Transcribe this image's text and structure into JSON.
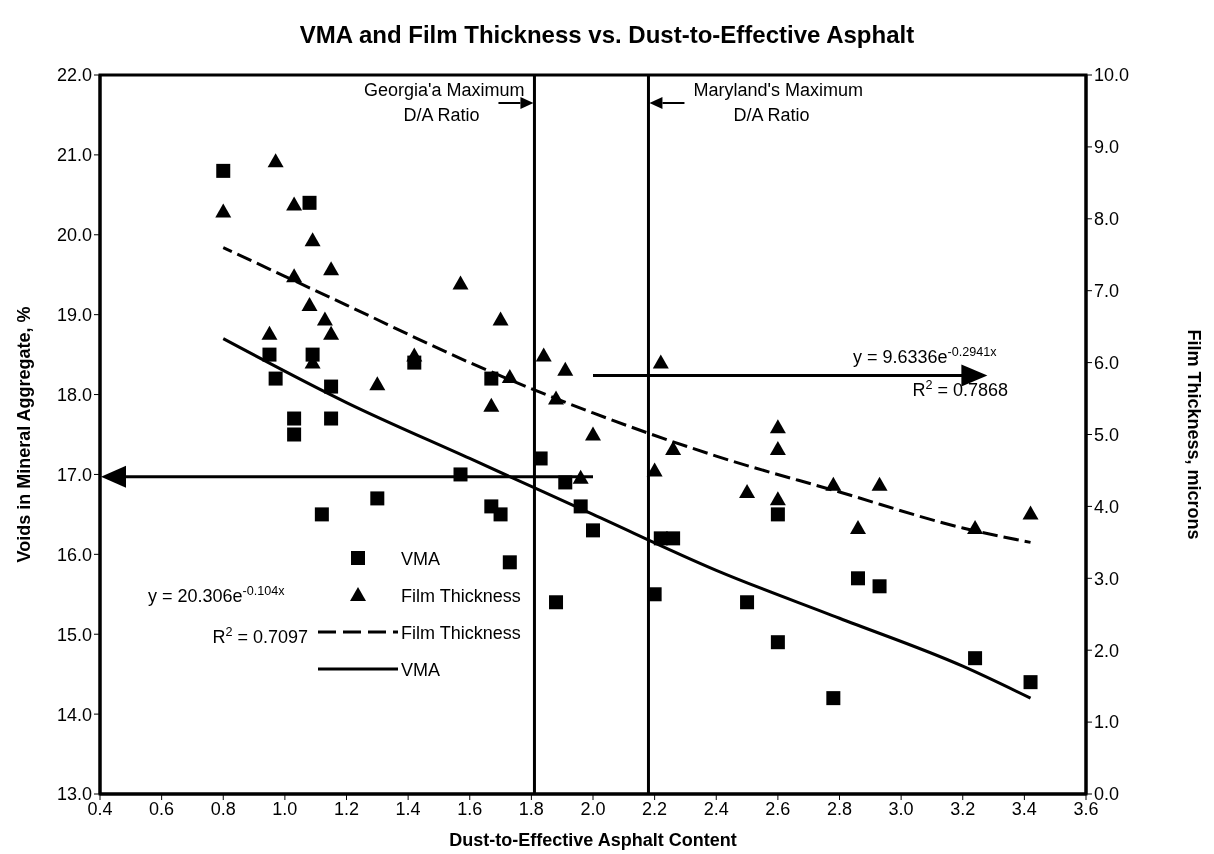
{
  "chart_data": {
    "type": "scatter",
    "title": "VMA and Film Thickness vs. Dust-to-Effective Asphalt",
    "xlabel": "Dust-to-Effective Asphalt Content",
    "ylabel": "Voids in Mineral Aggregate, %",
    "y2label": "Film Thickness, microns",
    "xlim": [
      0.4,
      3.6
    ],
    "xticks": [
      0.4,
      0.6,
      0.8,
      {
        "value": 1,
        "label": "1.0"
      },
      1.2,
      1.4,
      1.6,
      1.8,
      {
        "value": 2,
        "label": "2.0"
      },
      2.2,
      2.4,
      2.6,
      2.8,
      {
        "value": 3,
        "label": "3.0"
      },
      3.2,
      3.4,
      3.6
    ],
    "ylim": [
      13,
      22
    ],
    "yticks": [
      {
        "value": 13,
        "label": "13.0"
      },
      {
        "value": 14,
        "label": "14.0"
      },
      {
        "value": 15,
        "label": "15.0"
      },
      {
        "value": 16,
        "label": "16.0"
      },
      {
        "value": 17,
        "label": "17.0"
      },
      {
        "value": 18,
        "label": "18.0"
      },
      {
        "value": 19,
        "label": "19.0"
      },
      {
        "value": 20,
        "label": "20.0"
      },
      {
        "value": 21,
        "label": "21.0"
      },
      {
        "value": 22,
        "label": "22.0"
      }
    ],
    "y2lim": [
      0,
      10
    ],
    "y2ticks": [
      {
        "value": 0,
        "label": "0.0"
      },
      {
        "value": 1,
        "label": "1.0"
      },
      {
        "value": 2,
        "label": "2.0"
      },
      {
        "value": 3,
        "label": "3.0"
      },
      {
        "value": 4,
        "label": "4.0"
      },
      {
        "value": 5,
        "label": "5.0"
      },
      {
        "value": 6,
        "label": "6.0"
      },
      {
        "value": 7,
        "label": "7.0"
      },
      {
        "value": 8,
        "label": "8.0"
      },
      {
        "value": 9,
        "label": "9.0"
      },
      {
        "value": 10,
        "label": "10.0"
      }
    ],
    "grid": false,
    "legend": "bottom left",
    "series": [
      {
        "name": "VMA",
        "marker": "square",
        "color": "#000000",
        "x": [
          0.8,
          0.95,
          0.97,
          1.03,
          1.03,
          1.08,
          1.09,
          1.12,
          1.15,
          1.15,
          1.3,
          1.42,
          1.57,
          1.67,
          1.67,
          1.7,
          1.73,
          1.83,
          1.88,
          1.91,
          1.96,
          2.0,
          2.2,
          2.22,
          2.26,
          2.5,
          2.6,
          2.6,
          2.78,
          2.86,
          2.93,
          3.24,
          3.42
        ],
        "values": [
          20.8,
          18.5,
          18.2,
          17.7,
          17.5,
          20.4,
          18.5,
          16.5,
          17.7,
          18.1,
          16.7,
          18.4,
          17.0,
          18.2,
          16.6,
          16.5,
          15.9,
          17.2,
          15.4,
          16.9,
          16.6,
          16.3,
          15.5,
          16.2,
          16.2,
          15.4,
          16.5,
          14.9,
          14.2,
          15.7,
          15.6,
          14.7,
          14.4
        ]
      },
      {
        "name": "Film Thickness",
        "marker": "triangle",
        "axis": "y2",
        "color": "#000000",
        "x": [
          0.8,
          0.95,
          0.97,
          1.03,
          1.03,
          1.08,
          1.09,
          1.09,
          1.13,
          1.15,
          1.15,
          1.3,
          1.42,
          1.57,
          1.67,
          1.7,
          1.73,
          1.84,
          1.88,
          1.91,
          1.96,
          2.0,
          2.2,
          2.22,
          2.26,
          2.5,
          2.6,
          2.6,
          2.6,
          2.78,
          2.86,
          2.93,
          3.24,
          3.42
        ],
        "values": [
          8.1,
          6.4,
          8.8,
          8.2,
          7.2,
          6.8,
          7.7,
          6.0,
          6.6,
          6.4,
          7.3,
          5.7,
          6.1,
          7.1,
          5.4,
          6.6,
          5.8,
          6.1,
          5.5,
          5.9,
          4.4,
          5.0,
          4.5,
          6.0,
          4.8,
          4.2,
          5.1,
          4.8,
          4.1,
          4.3,
          3.7,
          4.3,
          3.7,
          3.9
        ]
      },
      {
        "name": "Film Thickness",
        "type": "line",
        "line_style": "dashed",
        "marker": "none",
        "axis": "y2",
        "color": "#000000",
        "x": [
          0.8,
          1.2,
          1.6,
          2.0,
          2.4,
          2.8,
          3.2,
          3.42
        ],
        "values": [
          7.6,
          6.8,
          6.0,
          5.3,
          4.7,
          4.2,
          3.7,
          3.5
        ]
      },
      {
        "name": "VMA",
        "type": "line",
        "line_style": "solid",
        "marker": "none",
        "color": "#000000",
        "x": [
          0.8,
          1.2,
          1.6,
          2.0,
          2.4,
          2.8,
          3.2,
          3.42
        ],
        "values": [
          18.7,
          17.9,
          17.2,
          16.5,
          15.8,
          15.2,
          14.6,
          14.2
        ]
      }
    ],
    "ref_lines": [
      {
        "axis": "x",
        "value": 1.81,
        "label": "Georgia'a Maximum\nD/A Ratio",
        "color": "#000000"
      },
      {
        "axis": "x",
        "value": 2.18,
        "label": "Maryland's Maximum\nD/A Ratio",
        "color": "#000000"
      }
    ],
    "annotations": [
      "y = 20.306e$^{-0.104x}$",
      "R$^{2}$ = 0.7097",
      "y = 9.6336e$^{-0.2941x}$",
      "R$^{2}$ = 0.7868"
    ]
  }
}
